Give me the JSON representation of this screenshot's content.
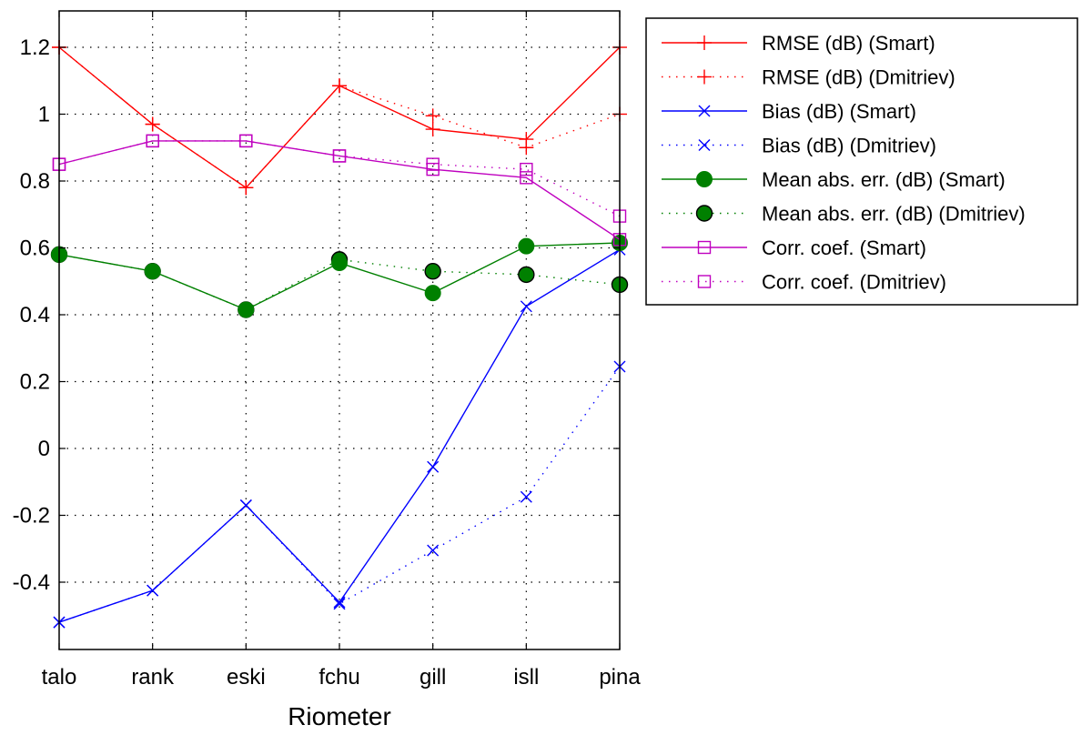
{
  "chart_data": {
    "type": "line",
    "title": "",
    "xlabel": "Riometer",
    "ylabel": "",
    "categories": [
      "talo",
      "rank",
      "eski",
      "fchu",
      "gill",
      "isll",
      "pina"
    ],
    "ylim": [
      -0.6,
      1.3
    ],
    "yticks": [
      -0.4,
      -0.2,
      0,
      0.2,
      0.4,
      0.6,
      0.8,
      1,
      1.2
    ],
    "ytick_labels": [
      "-0.4",
      "-0.2",
      "0",
      "0.2",
      "0.4",
      "0.6",
      "0.8",
      "1",
      "1.2"
    ],
    "grid": true,
    "legend_position": "outside-right-top",
    "series": [
      {
        "name": "RMSE (dB) (Smart)",
        "color": "#ff0000",
        "dash": "solid",
        "marker": "plus",
        "values": [
          1.2,
          0.97,
          0.78,
          1.085,
          0.955,
          0.925,
          1.2
        ]
      },
      {
        "name": "RMSE (dB) (Dmitriev)",
        "color": "#ff0000",
        "dash": "dotted",
        "marker": "plus",
        "values": [
          1.2,
          0.97,
          0.78,
          1.085,
          0.995,
          0.9,
          1.0
        ]
      },
      {
        "name": "Bias (dB) (Smart)",
        "color": "#0000ff",
        "dash": "solid",
        "marker": "x",
        "values": [
          -0.52,
          -0.425,
          -0.17,
          -0.46,
          -0.055,
          0.425,
          0.595
        ]
      },
      {
        "name": "Bias (dB) (Dmitriev)",
        "color": "#0000ff",
        "dash": "dotted",
        "marker": "x",
        "values": [
          -0.52,
          -0.425,
          -0.17,
          -0.465,
          -0.305,
          -0.145,
          0.245
        ]
      },
      {
        "name": "Mean abs. err. (dB) (Smart)",
        "color": "#008000",
        "dash": "solid",
        "marker": "circle-filled",
        "values": [
          0.58,
          0.53,
          0.415,
          0.555,
          0.465,
          0.605,
          0.615
        ]
      },
      {
        "name": "Mean abs. err. (dB) (Dmitriev)",
        "color": "#008000",
        "dash": "dotted",
        "marker": "circle-filled-outlined",
        "values": [
          0.58,
          0.53,
          0.415,
          0.565,
          0.53,
          0.52,
          0.49
        ]
      },
      {
        "name": "Corr. coef.  (Smart)",
        "color": "#bf00bf",
        "dash": "solid",
        "marker": "square",
        "values": [
          0.85,
          0.92,
          0.92,
          0.875,
          0.835,
          0.81,
          0.625
        ]
      },
      {
        "name": "Corr. coef.  (Dmitriev)",
        "color": "#bf00bf",
        "dash": "dotted",
        "marker": "square",
        "values": [
          0.85,
          0.92,
          0.92,
          0.875,
          0.85,
          0.835,
          0.695
        ]
      }
    ]
  }
}
